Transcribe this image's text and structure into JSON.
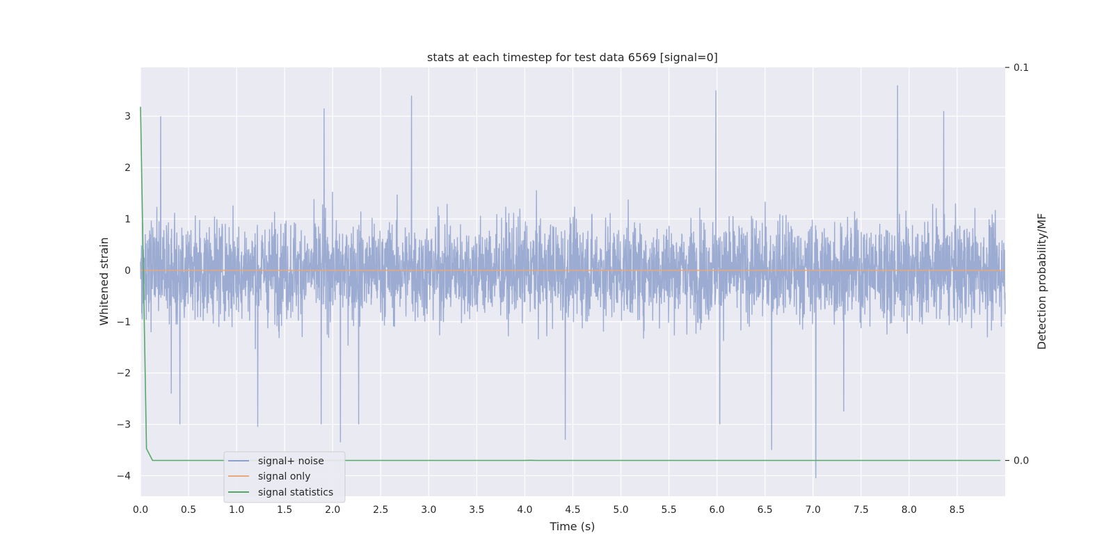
{
  "chart_data": {
    "type": "line",
    "title": "stats at each timestep for test data 6569 [signal=0]",
    "xlabel": "Time (s)",
    "ylabel": "Whitened strain",
    "ylabel_right": "Detection probability/MF",
    "xlim": [
      0.0,
      9.0
    ],
    "ylim": [
      -4.4,
      3.95
    ],
    "ylim_right": [
      -0.0091,
      0.1
    ],
    "x_ticks": [
      "0.0",
      "0.5",
      "1.0",
      "1.5",
      "2.0",
      "2.5",
      "3.0",
      "3.5",
      "4.0",
      "4.5",
      "5.0",
      "5.5",
      "6.0",
      "6.5",
      "7.0",
      "7.5",
      "8.0",
      "8.5"
    ],
    "y_ticks": [
      "3",
      "2",
      "1",
      "0",
      "−1",
      "−2",
      "−3",
      "−4"
    ],
    "y_right_ticks": [
      "0.1",
      "0.0"
    ],
    "grid": true,
    "legend_placement": "lower-left",
    "series": [
      {
        "name": "signal+ noise",
        "axis": "left",
        "color": "#8da0cb",
        "description_peaks": {
          "max_peaks": [
            [
              0.21,
              3.0
            ],
            [
              1.91,
              3.15
            ],
            [
              2.82,
              3.4
            ],
            [
              5.99,
              3.5
            ],
            [
              7.88,
              3.6
            ],
            [
              8.36,
              3.1
            ]
          ],
          "min_peaks": [
            [
              0.32,
              -2.4
            ],
            [
              0.41,
              -3.0
            ],
            [
              1.22,
              -3.05
            ],
            [
              1.88,
              -3.0
            ],
            [
              2.08,
              -3.35
            ],
            [
              2.27,
              -3.0
            ],
            [
              4.42,
              -3.3
            ],
            [
              6.03,
              -3.0
            ],
            [
              6.57,
              -3.5
            ],
            [
              7.03,
              -4.05
            ],
            [
              7.32,
              -2.75
            ]
          ],
          "typical_amplitude": 1.3
        }
      },
      {
        "name": "signal only",
        "axis": "left",
        "color": "#e8a87c",
        "x": [
          0.0,
          9.0
        ],
        "values": [
          0.0,
          0.0
        ]
      },
      {
        "name": "signal statistics",
        "axis": "right",
        "color": "#55a868",
        "x": [
          0.0,
          0.0625,
          0.125,
          4.0,
          4.06,
          4.12,
          8.95
        ],
        "values": [
          0.09,
          0.003,
          0.0,
          0.0,
          5e-05,
          0.0,
          0.0
        ]
      }
    ]
  }
}
